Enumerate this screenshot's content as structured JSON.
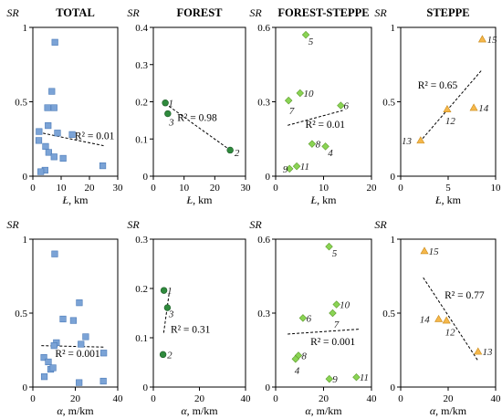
{
  "figure": {
    "y_axis_label": "SR",
    "row_xlabels": [
      {
        "var": "Ł",
        "unit": ", km"
      },
      {
        "var": "α",
        "unit": ", m/km"
      }
    ]
  },
  "chart_data": [
    {
      "type": "scatter",
      "title": "TOTAL",
      "row": 0,
      "col": 0,
      "marker": "square",
      "color": "#7ba3d6",
      "stroke": "#4a7ab8",
      "xlim": [
        0,
        30
      ],
      "ylim": [
        0,
        1
      ],
      "xticks": [
        0,
        10,
        20,
        30
      ],
      "yticks": [
        0,
        0.5,
        1
      ],
      "xtick_labels": [
        "0",
        "10",
        "20",
        "30"
      ],
      "ytick_labels": [
        "0",
        "0.5",
        "1"
      ],
      "points": [
        {
          "x": 7.8,
          "y": 0.9
        },
        {
          "x": 6.7,
          "y": 0.57
        },
        {
          "x": 7.5,
          "y": 0.46
        },
        {
          "x": 5.2,
          "y": 0.46
        },
        {
          "x": 5.4,
          "y": 0.34
        },
        {
          "x": 2.2,
          "y": 0.3
        },
        {
          "x": 2.1,
          "y": 0.24
        },
        {
          "x": 8.7,
          "y": 0.29
        },
        {
          "x": 13.9,
          "y": 0.28
        },
        {
          "x": 4.5,
          "y": 0.2
        },
        {
          "x": 5.6,
          "y": 0.16
        },
        {
          "x": 7.5,
          "y": 0.13
        },
        {
          "x": 10.7,
          "y": 0.12
        },
        {
          "x": 4.3,
          "y": 0.04
        },
        {
          "x": 2.8,
          "y": 0.03
        },
        {
          "x": 24.7,
          "y": 0.07
        }
      ],
      "trend": {
        "x": [
          2,
          25
        ],
        "y": [
          0.295,
          0.205
        ],
        "r2_label": "R² = 0.01",
        "r2_at": [
          14.8,
          0.25
        ]
      }
    },
    {
      "type": "scatter",
      "title": "FOREST",
      "row": 0,
      "col": 1,
      "marker": "circle",
      "color": "#2f8a3d",
      "stroke": "#1d5a27",
      "xlim": [
        0,
        30
      ],
      "ylim": [
        0,
        0.4
      ],
      "xticks": [
        0,
        10,
        20,
        30
      ],
      "yticks": [
        0,
        0.1,
        0.2,
        0.3,
        0.4
      ],
      "xtick_labels": [
        "0",
        "10",
        "20",
        "30"
      ],
      "ytick_labels": [
        "0",
        "0.1",
        "0.2",
        "0.3",
        "0.4"
      ],
      "points": [
        {
          "x": 3.9,
          "y": 0.197,
          "label": "1",
          "lx": 1.0,
          "ly": 0.0
        },
        {
          "x": 4.7,
          "y": 0.168,
          "label": "3",
          "lx": 0.4,
          "ly": -0.022
        },
        {
          "x": 25.0,
          "y": 0.07,
          "label": "2",
          "lx": 1.4,
          "ly": -0.006
        }
      ],
      "trend": {
        "x": [
          3.9,
          25
        ],
        "y": [
          0.195,
          0.07
        ],
        "r2_label": "R² = 0.98",
        "r2_at": [
          7.8,
          0.148
        ]
      }
    },
    {
      "type": "scatter",
      "title": "FOREST-STEPPE",
      "row": 0,
      "col": 2,
      "marker": "diamond",
      "color": "#8ad454",
      "stroke": "#5c9a2a",
      "xlim": [
        0,
        20
      ],
      "ylim": [
        0,
        0.6
      ],
      "xticks": [
        0,
        10,
        20
      ],
      "yticks": [
        0,
        0.3,
        0.6
      ],
      "xtick_labels": [
        "0",
        "10",
        "20"
      ],
      "ytick_labels": [
        "0",
        "0.3",
        "0.6"
      ],
      "points": [
        {
          "x": 6.3,
          "y": 0.57,
          "label": "5",
          "lx": 0.5,
          "ly": -0.025
        },
        {
          "x": 5.1,
          "y": 0.335,
          "label": "10",
          "lx": 0.7,
          "ly": 0.0
        },
        {
          "x": 2.7,
          "y": 0.305,
          "label": "7",
          "lx": 0.1,
          "ly": -0.04
        },
        {
          "x": 13.6,
          "y": 0.285,
          "label": "6",
          "lx": 0.6,
          "ly": 0.0
        },
        {
          "x": 7.6,
          "y": 0.13,
          "label": "8",
          "lx": 0.7,
          "ly": 0.0
        },
        {
          "x": 10.4,
          "y": 0.12,
          "label": "4",
          "lx": 0.5,
          "ly": -0.025
        },
        {
          "x": 4.4,
          "y": 0.04,
          "label": "11",
          "lx": 0.7,
          "ly": 0.0
        },
        {
          "x": 2.9,
          "y": 0.03,
          "label": "9",
          "lx": -1.4,
          "ly": 0.0
        }
      ],
      "trend": {
        "x": [
          2.5,
          14
        ],
        "y": [
          0.205,
          0.265
        ],
        "r2_label": "R² = 0.01",
        "r2_at": [
          6.2,
          0.195
        ]
      }
    },
    {
      "type": "scatter",
      "title": "STEPPE",
      "row": 0,
      "col": 3,
      "marker": "triangle",
      "color": "#f5b74a",
      "stroke": "#c98a1a",
      "xlim": [
        0,
        10
      ],
      "ylim": [
        0,
        1
      ],
      "xticks": [
        0,
        5,
        10
      ],
      "yticks": [
        0,
        0.5,
        1
      ],
      "xtick_labels": [
        "0",
        "5",
        "10"
      ],
      "ytick_labels": [
        "0",
        "0.5",
        "1"
      ],
      "points": [
        {
          "x": 8.6,
          "y": 0.92,
          "label": "15",
          "lx": 0.5,
          "ly": 0.0
        },
        {
          "x": 7.7,
          "y": 0.46,
          "label": "14",
          "lx": 0.5,
          "ly": 0.0
        },
        {
          "x": 4.9,
          "y": 0.45,
          "label": "12",
          "lx": -0.2,
          "ly": -0.075
        },
        {
          "x": 2.1,
          "y": 0.24,
          "label": "13",
          "lx": -2.0,
          "ly": 0.0
        }
      ],
      "trend": {
        "x": [
          2,
          8.5
        ],
        "y": [
          0.23,
          0.71
        ],
        "r2_label": "R² = 0.65",
        "r2_at": [
          1.8,
          0.59
        ]
      }
    },
    {
      "type": "scatter",
      "title": "",
      "row": 1,
      "col": 0,
      "marker": "square",
      "color": "#7ba3d6",
      "stroke": "#4a7ab8",
      "xlim": [
        0,
        40
      ],
      "ylim": [
        0,
        1
      ],
      "xticks": [
        0,
        20,
        40
      ],
      "yticks": [
        0,
        0.5,
        1
      ],
      "xtick_labels": [
        "0",
        "20",
        "40"
      ],
      "ytick_labels": [
        "0",
        "0.5",
        "1"
      ],
      "points": [
        {
          "x": 10.3,
          "y": 0.9
        },
        {
          "x": 21.9,
          "y": 0.57
        },
        {
          "x": 14.2,
          "y": 0.46
        },
        {
          "x": 19.1,
          "y": 0.45
        },
        {
          "x": 24.9,
          "y": 0.34
        },
        {
          "x": 11.1,
          "y": 0.3
        },
        {
          "x": 22.7,
          "y": 0.29
        },
        {
          "x": 10.0,
          "y": 0.28
        },
        {
          "x": 33.4,
          "y": 0.23
        },
        {
          "x": 5.2,
          "y": 0.2
        },
        {
          "x": 7.3,
          "y": 0.17
        },
        {
          "x": 8.4,
          "y": 0.12
        },
        {
          "x": 9.5,
          "y": 0.13
        },
        {
          "x": 5.4,
          "y": 0.07
        },
        {
          "x": 21.8,
          "y": 0.03
        },
        {
          "x": 33.2,
          "y": 0.04
        }
      ],
      "trend": {
        "x": [
          4,
          34
        ],
        "y": [
          0.28,
          0.27
        ],
        "r2_label": "R² = 0.001",
        "r2_at": [
          10.5,
          0.205
        ]
      }
    },
    {
      "type": "scatter",
      "title": "",
      "row": 1,
      "col": 1,
      "marker": "circle",
      "color": "#2f8a3d",
      "stroke": "#1d5a27",
      "xlim": [
        0,
        40
      ],
      "ylim": [
        0,
        0.3
      ],
      "xticks": [
        0,
        20,
        40
      ],
      "yticks": [
        0,
        0.1,
        0.2,
        0.3
      ],
      "xtick_labels": [
        "0",
        "20",
        "40"
      ],
      "ytick_labels": [
        "0",
        "0.1",
        "0.2",
        "0.3"
      ],
      "points": [
        {
          "x": 4.6,
          "y": 0.196,
          "label": "1",
          "lx": 1.4,
          "ly": 0.0
        },
        {
          "x": 6.1,
          "y": 0.161,
          "label": "3",
          "lx": 0.6,
          "ly": -0.012
        },
        {
          "x": 4.2,
          "y": 0.066,
          "label": "2",
          "lx": 1.8,
          "ly": 0.0
        }
      ],
      "trend": {
        "x": [
          4.5,
          6.9
        ],
        "y": [
          0.11,
          0.192
        ],
        "r2_label": "R² = 0.31",
        "r2_at": [
          7.5,
          0.11
        ]
      }
    },
    {
      "type": "scatter",
      "title": "",
      "row": 1,
      "col": 2,
      "marker": "diamond",
      "color": "#8ad454",
      "stroke": "#5c9a2a",
      "xlim": [
        0,
        40
      ],
      "ylim": [
        0,
        0.6
      ],
      "xticks": [
        0,
        20,
        40
      ],
      "yticks": [
        0,
        0.3,
        0.6
      ],
      "xtick_labels": [
        "0",
        "20",
        "40"
      ],
      "ytick_labels": [
        "0",
        "0.3",
        "0.6"
      ],
      "points": [
        {
          "x": 22.3,
          "y": 0.57,
          "label": "5",
          "lx": 1.2,
          "ly": -0.025
        },
        {
          "x": 25.4,
          "y": 0.335,
          "label": "10",
          "lx": 1.3,
          "ly": 0.0
        },
        {
          "x": 23.8,
          "y": 0.3,
          "label": "7",
          "lx": 0.5,
          "ly": -0.045
        },
        {
          "x": 11.4,
          "y": 0.28,
          "label": "6",
          "lx": 1.4,
          "ly": 0.0
        },
        {
          "x": 9.5,
          "y": 0.128,
          "label": "8",
          "lx": 1.3,
          "ly": 0.0
        },
        {
          "x": 8.3,
          "y": 0.114,
          "label": "4",
          "lx": -0.4,
          "ly": -0.045
        },
        {
          "x": 22.4,
          "y": 0.033,
          "label": "9",
          "lx": 1.3,
          "ly": 0.0
        },
        {
          "x": 33.7,
          "y": 0.04,
          "label": "11",
          "lx": 1.3,
          "ly": 0.0
        }
      ],
      "trend": {
        "x": [
          5,
          35
        ],
        "y": [
          0.215,
          0.235
        ],
        "r2_label": "R² = 0.001",
        "r2_at": [
          14.5,
          0.17
        ]
      }
    },
    {
      "type": "scatter",
      "title": "",
      "row": 1,
      "col": 3,
      "marker": "triangle",
      "color": "#f5b74a",
      "stroke": "#c98a1a",
      "xlim": [
        0,
        40
      ],
      "ylim": [
        0,
        1
      ],
      "xticks": [
        0,
        20,
        40
      ],
      "yticks": [
        0,
        0.5,
        1
      ],
      "xtick_labels": [
        "0",
        "20",
        "40"
      ],
      "ytick_labels": [
        "0",
        "0.5",
        "1"
      ],
      "points": [
        {
          "x": 10.0,
          "y": 0.92,
          "label": "15",
          "lx": 1.8,
          "ly": 0.0
        },
        {
          "x": 16.0,
          "y": 0.46,
          "label": "14",
          "lx": -8.0,
          "ly": 0.0
        },
        {
          "x": 19.3,
          "y": 0.45,
          "label": "12",
          "lx": -0.6,
          "ly": -0.075
        },
        {
          "x": 32.6,
          "y": 0.24,
          "label": "13",
          "lx": 1.8,
          "ly": 0.0
        }
      ],
      "trend": {
        "x": [
          9.5,
          32.5
        ],
        "y": [
          0.74,
          0.18
        ],
        "r2_label": "R² = 0.77",
        "r2_at": [
          18.5,
          0.6
        ]
      }
    }
  ]
}
